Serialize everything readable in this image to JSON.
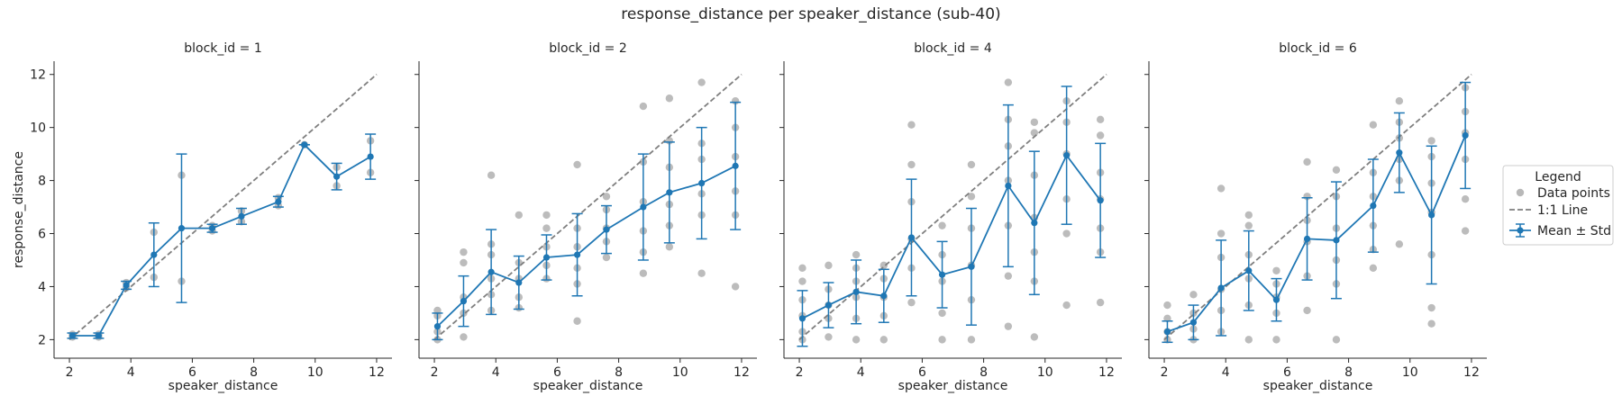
{
  "figure_title": "response_distance per speaker_distance (sub-40)",
  "legend": {
    "title": "Legend",
    "entries": [
      "Data points",
      "1:1 Line",
      "Mean ± Std"
    ]
  },
  "colors": {
    "mean": "#1f77b4",
    "points": "#a0a0a0",
    "identity": "#7f7f7f",
    "axis": "#262626"
  },
  "chart_data": {
    "type": "line",
    "title": "response_distance per speaker_distance (sub-40)",
    "xlabel": "speaker_distance",
    "ylabel": "response_distance",
    "xlim": [
      1.5,
      12.5
    ],
    "ylim": [
      1.3,
      12.5
    ],
    "xticks": [
      2,
      4,
      6,
      8,
      10,
      12
    ],
    "yticks": [
      2,
      4,
      6,
      8,
      10,
      12
    ],
    "shared_y": true,
    "grid": false,
    "legend_position": "right",
    "identity_line": [
      [
        2,
        2
      ],
      [
        12,
        12
      ]
    ],
    "panels": [
      {
        "title": "block_id = 1",
        "mean": [
          {
            "x": 2.1,
            "y": 2.15,
            "sd": 0.1
          },
          {
            "x": 2.95,
            "y": 2.15,
            "sd": 0.1
          },
          {
            "x": 3.85,
            "y": 4.05,
            "sd": 0.15
          },
          {
            "x": 4.75,
            "y": 5.2,
            "sd": 1.2
          },
          {
            "x": 5.65,
            "y": 6.2,
            "sd": 2.8
          },
          {
            "x": 6.65,
            "y": 6.2,
            "sd": 0.15
          },
          {
            "x": 7.6,
            "y": 6.65,
            "sd": 0.3
          },
          {
            "x": 8.8,
            "y": 7.2,
            "sd": 0.2
          },
          {
            "x": 9.65,
            "y": 9.35,
            "sd": 0
          },
          {
            "x": 10.7,
            "y": 8.15,
            "sd": 0.5
          },
          {
            "x": 11.8,
            "y": 8.9,
            "sd": 0.85
          }
        ],
        "points": [
          [
            2.1,
            2.1
          ],
          [
            2.1,
            2.2
          ],
          [
            2.95,
            2.1
          ],
          [
            2.95,
            2.2
          ],
          [
            3.85,
            3.95
          ],
          [
            3.85,
            4.15
          ],
          [
            4.75,
            4.35
          ],
          [
            4.75,
            6.05
          ],
          [
            5.65,
            4.2
          ],
          [
            5.65,
            8.2
          ],
          [
            6.65,
            6.1
          ],
          [
            6.65,
            6.3
          ],
          [
            7.6,
            6.45
          ],
          [
            7.6,
            6.85
          ],
          [
            8.8,
            7.05
          ],
          [
            8.8,
            7.35
          ],
          [
            9.65,
            9.35
          ],
          [
            10.7,
            7.8
          ],
          [
            10.7,
            8.5
          ],
          [
            11.8,
            8.3
          ],
          [
            11.8,
            9.5
          ]
        ]
      },
      {
        "title": "block_id = 2",
        "mean": [
          {
            "x": 2.1,
            "y": 2.5,
            "sd": 0.5
          },
          {
            "x": 2.95,
            "y": 3.45,
            "sd": 0.95
          },
          {
            "x": 3.85,
            "y": 4.55,
            "sd": 1.6
          },
          {
            "x": 4.75,
            "y": 4.15,
            "sd": 1.0
          },
          {
            "x": 5.65,
            "y": 5.1,
            "sd": 0.85
          },
          {
            "x": 6.65,
            "y": 5.2,
            "sd": 1.55
          },
          {
            "x": 7.6,
            "y": 6.15,
            "sd": 0.9
          },
          {
            "x": 8.8,
            "y": 7.0,
            "sd": 2.0
          },
          {
            "x": 9.65,
            "y": 7.55,
            "sd": 1.9
          },
          {
            "x": 10.7,
            "y": 7.9,
            "sd": 2.1
          },
          {
            "x": 11.8,
            "y": 8.55,
            "sd": 2.4
          }
        ],
        "points": [
          [
            2.1,
            2.0
          ],
          [
            2.1,
            2.3
          ],
          [
            2.1,
            2.9
          ],
          [
            2.1,
            3.1
          ],
          [
            2.95,
            2.1
          ],
          [
            2.95,
            3.0
          ],
          [
            2.95,
            3.6
          ],
          [
            2.95,
            4.9
          ],
          [
            2.95,
            5.3
          ],
          [
            3.85,
            3.1
          ],
          [
            3.85,
            3.7
          ],
          [
            3.85,
            4.3
          ],
          [
            3.85,
            5.2
          ],
          [
            3.85,
            5.6
          ],
          [
            3.85,
            8.2
          ],
          [
            4.75,
            3.2
          ],
          [
            4.75,
            3.6
          ],
          [
            4.75,
            4.3
          ],
          [
            4.75,
            4.9
          ],
          [
            4.75,
            6.7
          ],
          [
            5.65,
            4.3
          ],
          [
            5.65,
            4.8
          ],
          [
            5.65,
            5.5
          ],
          [
            5.65,
            6.2
          ],
          [
            5.65,
            6.7
          ],
          [
            6.65,
            2.7
          ],
          [
            6.65,
            4.1
          ],
          [
            6.65,
            4.7
          ],
          [
            6.65,
            5.5
          ],
          [
            6.65,
            6.2
          ],
          [
            6.65,
            8.6
          ],
          [
            7.6,
            5.1
          ],
          [
            7.6,
            5.7
          ],
          [
            7.6,
            6.2
          ],
          [
            7.6,
            6.9
          ],
          [
            7.6,
            7.4
          ],
          [
            8.8,
            4.5
          ],
          [
            8.8,
            5.3
          ],
          [
            8.8,
            6.1
          ],
          [
            8.8,
            7.2
          ],
          [
            8.8,
            8.7
          ],
          [
            8.8,
            10.8
          ],
          [
            9.65,
            5.5
          ],
          [
            9.65,
            6.3
          ],
          [
            9.65,
            7.1
          ],
          [
            9.65,
            8.5
          ],
          [
            9.65,
            9.5
          ],
          [
            9.65,
            11.1
          ],
          [
            10.7,
            4.5
          ],
          [
            10.7,
            6.7
          ],
          [
            10.7,
            7.5
          ],
          [
            10.7,
            8.8
          ],
          [
            10.7,
            9.4
          ],
          [
            10.7,
            11.7
          ],
          [
            11.8,
            4.0
          ],
          [
            11.8,
            6.7
          ],
          [
            11.8,
            7.6
          ],
          [
            11.8,
            8.9
          ],
          [
            11.8,
            10.0
          ],
          [
            11.8,
            11.0
          ]
        ]
      },
      {
        "title": "block_id = 4",
        "mean": [
          {
            "x": 2.1,
            "y": 2.8,
            "sd": 1.05
          },
          {
            "x": 2.95,
            "y": 3.3,
            "sd": 0.85
          },
          {
            "x": 3.85,
            "y": 3.8,
            "sd": 1.2
          },
          {
            "x": 4.75,
            "y": 3.65,
            "sd": 1.0
          },
          {
            "x": 5.65,
            "y": 5.85,
            "sd": 2.2
          },
          {
            "x": 6.65,
            "y": 4.45,
            "sd": 1.25
          },
          {
            "x": 7.6,
            "y": 4.75,
            "sd": 2.2
          },
          {
            "x": 8.8,
            "y": 7.8,
            "sd": 3.05
          },
          {
            "x": 9.65,
            "y": 6.4,
            "sd": 2.7
          },
          {
            "x": 10.7,
            "y": 8.95,
            "sd": 2.6
          },
          {
            "x": 11.8,
            "y": 7.25,
            "sd": 2.15
          }
        ],
        "points": [
          [
            2.1,
            2.0
          ],
          [
            2.1,
            2.3
          ],
          [
            2.1,
            2.9
          ],
          [
            2.1,
            3.5
          ],
          [
            2.1,
            4.2
          ],
          [
            2.1,
            4.7
          ],
          [
            2.95,
            2.1
          ],
          [
            2.95,
            2.8
          ],
          [
            2.95,
            3.3
          ],
          [
            2.95,
            3.9
          ],
          [
            2.95,
            4.8
          ],
          [
            3.85,
            2.0
          ],
          [
            3.85,
            2.8
          ],
          [
            3.85,
            3.6
          ],
          [
            3.85,
            4.2
          ],
          [
            3.85,
            4.7
          ],
          [
            3.85,
            5.2
          ],
          [
            4.75,
            2.0
          ],
          [
            4.75,
            2.9
          ],
          [
            4.75,
            3.6
          ],
          [
            4.75,
            4.3
          ],
          [
            4.75,
            4.8
          ],
          [
            5.65,
            3.4
          ],
          [
            5.65,
            4.7
          ],
          [
            5.65,
            5.8
          ],
          [
            5.65,
            7.2
          ],
          [
            5.65,
            8.6
          ],
          [
            5.65,
            10.1
          ],
          [
            6.65,
            2.0
          ],
          [
            6.65,
            3.0
          ],
          [
            6.65,
            4.2
          ],
          [
            6.65,
            5.2
          ],
          [
            6.65,
            6.3
          ],
          [
            7.6,
            2.0
          ],
          [
            7.6,
            3.5
          ],
          [
            7.6,
            4.8
          ],
          [
            7.6,
            6.2
          ],
          [
            7.6,
            7.4
          ],
          [
            7.6,
            8.6
          ],
          [
            8.8,
            2.5
          ],
          [
            8.8,
            4.4
          ],
          [
            8.8,
            6.3
          ],
          [
            8.8,
            8.0
          ],
          [
            8.8,
            9.3
          ],
          [
            8.8,
            10.3
          ],
          [
            8.8,
            11.7
          ],
          [
            9.65,
            2.1
          ],
          [
            9.65,
            4.2
          ],
          [
            9.65,
            5.3
          ],
          [
            9.65,
            6.6
          ],
          [
            9.65,
            8.2
          ],
          [
            9.65,
            9.8
          ],
          [
            9.65,
            10.2
          ],
          [
            10.7,
            3.3
          ],
          [
            10.7,
            6.0
          ],
          [
            10.7,
            7.3
          ],
          [
            10.7,
            9.0
          ],
          [
            10.7,
            10.2
          ],
          [
            10.7,
            11.0
          ],
          [
            11.8,
            3.4
          ],
          [
            11.8,
            5.3
          ],
          [
            11.8,
            6.2
          ],
          [
            11.8,
            7.3
          ],
          [
            11.8,
            8.3
          ],
          [
            11.8,
            9.7
          ],
          [
            11.8,
            10.3
          ]
        ]
      },
      {
        "title": "block_id = 6",
        "mean": [
          {
            "x": 2.1,
            "y": 2.3,
            "sd": 0.4
          },
          {
            "x": 2.95,
            "y": 2.65,
            "sd": 0.65
          },
          {
            "x": 3.85,
            "y": 3.95,
            "sd": 1.8
          },
          {
            "x": 4.75,
            "y": 4.6,
            "sd": 1.5
          },
          {
            "x": 5.65,
            "y": 3.5,
            "sd": 0.8
          },
          {
            "x": 6.65,
            "y": 5.8,
            "sd": 1.55
          },
          {
            "x": 7.6,
            "y": 5.75,
            "sd": 2.2
          },
          {
            "x": 8.8,
            "y": 7.05,
            "sd": 1.75
          },
          {
            "x": 9.65,
            "y": 9.05,
            "sd": 1.5
          },
          {
            "x": 10.7,
            "y": 6.7,
            "sd": 2.6
          },
          {
            "x": 11.8,
            "y": 9.7,
            "sd": 2.0
          }
        ],
        "points": [
          [
            2.1,
            2.0
          ],
          [
            2.1,
            2.3
          ],
          [
            2.1,
            2.8
          ],
          [
            2.1,
            3.3
          ],
          [
            2.95,
            2.0
          ],
          [
            2.95,
            2.4
          ],
          [
            2.95,
            3.0
          ],
          [
            2.95,
            3.7
          ],
          [
            3.85,
            2.3
          ],
          [
            3.85,
            3.1
          ],
          [
            3.85,
            3.9
          ],
          [
            3.85,
            5.1
          ],
          [
            3.85,
            6.0
          ],
          [
            3.85,
            7.7
          ],
          [
            4.75,
            2.0
          ],
          [
            4.75,
            3.3
          ],
          [
            4.75,
            4.3
          ],
          [
            4.75,
            5.2
          ],
          [
            4.75,
            6.3
          ],
          [
            4.75,
            6.7
          ],
          [
            5.65,
            2.0
          ],
          [
            5.65,
            3.0
          ],
          [
            5.65,
            3.6
          ],
          [
            5.65,
            4.1
          ],
          [
            5.65,
            4.6
          ],
          [
            6.65,
            3.1
          ],
          [
            6.65,
            4.4
          ],
          [
            6.65,
            5.7
          ],
          [
            6.65,
            6.5
          ],
          [
            6.65,
            7.4
          ],
          [
            6.65,
            8.7
          ],
          [
            7.6,
            2.0
          ],
          [
            7.6,
            4.1
          ],
          [
            7.6,
            5.0
          ],
          [
            7.6,
            6.2
          ],
          [
            7.6,
            7.4
          ],
          [
            7.6,
            8.4
          ],
          [
            8.8,
            4.7
          ],
          [
            8.8,
            5.4
          ],
          [
            8.8,
            6.3
          ],
          [
            8.8,
            7.4
          ],
          [
            8.8,
            8.3
          ],
          [
            8.8,
            10.1
          ],
          [
            9.65,
            5.6
          ],
          [
            9.65,
            8.0
          ],
          [
            9.65,
            8.8
          ],
          [
            9.65,
            9.6
          ],
          [
            9.65,
            10.2
          ],
          [
            9.65,
            11.0
          ],
          [
            10.7,
            2.6
          ],
          [
            10.7,
            3.2
          ],
          [
            10.7,
            5.2
          ],
          [
            10.7,
            6.8
          ],
          [
            10.7,
            7.9
          ],
          [
            10.7,
            8.9
          ],
          [
            10.7,
            9.5
          ],
          [
            11.8,
            6.1
          ],
          [
            11.8,
            7.3
          ],
          [
            11.8,
            8.8
          ],
          [
            11.8,
            9.8
          ],
          [
            11.8,
            10.6
          ],
          [
            11.8,
            11.5
          ]
        ]
      }
    ]
  }
}
